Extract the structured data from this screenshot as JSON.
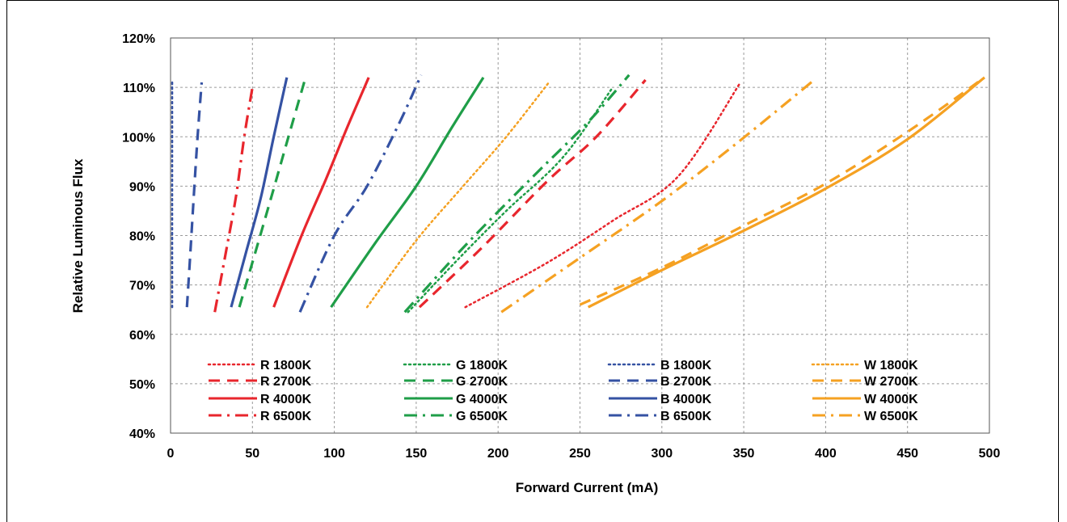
{
  "colors": {
    "R": "#e8262d",
    "G": "#1f9e48",
    "B": "#3552a3",
    "W": "#f5a122",
    "grid": "#9a9a9a"
  },
  "chart_data": {
    "type": "line",
    "title": "",
    "xlabel": "Forward Current (mA)",
    "ylabel": "Relative Luminous Flux",
    "xlim": [
      0,
      500
    ],
    "ylim": [
      0.4,
      1.2
    ],
    "x_ticks": [
      0,
      50,
      100,
      150,
      200,
      250,
      300,
      350,
      400,
      450,
      500
    ],
    "y_ticks": [
      "40%",
      "50%",
      "60%",
      "70%",
      "80%",
      "90%",
      "100%",
      "110%",
      "120%"
    ],
    "grid": true,
    "legend_position": "bottom-inside",
    "series": [
      {
        "name": "R 1800K",
        "color_key": "R",
        "style": "dotted",
        "x": [
          180,
          230,
          270,
          310,
          348
        ],
        "y": [
          0.655,
          0.745,
          0.83,
          0.92,
          1.11
        ]
      },
      {
        "name": "G 1800K",
        "color_key": "G",
        "style": "dotted",
        "x": [
          145,
          175,
          205,
          240,
          270
        ],
        "y": [
          0.645,
          0.75,
          0.85,
          0.96,
          1.1
        ]
      },
      {
        "name": "B 1800K",
        "color_key": "B",
        "style": "dotted",
        "x": [
          1,
          1,
          1
        ],
        "y": [
          0.655,
          0.88,
          1.115
        ]
      },
      {
        "name": "W 1800K",
        "color_key": "W",
        "style": "dotted",
        "x": [
          120,
          150,
          180,
          205,
          231
        ],
        "y": [
          0.655,
          0.79,
          0.905,
          1.0,
          1.11
        ]
      },
      {
        "name": "R 2700K",
        "color_key": "R",
        "style": "dashed",
        "x": [
          152,
          190,
          230,
          260,
          290
        ],
        "y": [
          0.655,
          0.775,
          0.91,
          1.0,
          1.115
        ]
      },
      {
        "name": "G 2700K",
        "color_key": "G",
        "style": "dashed",
        "x": [
          42,
          53,
          63,
          72,
          82
        ],
        "y": [
          0.655,
          0.78,
          0.895,
          1.0,
          1.115
        ]
      },
      {
        "name": "B 2700K",
        "color_key": "B",
        "style": "dashed",
        "x": [
          10,
          12,
          14,
          16.5,
          19
        ],
        "y": [
          0.655,
          0.76,
          0.87,
          1.0,
          1.11
        ]
      },
      {
        "name": "W 2700K",
        "color_key": "W",
        "style": "dashed",
        "x": [
          250,
          300,
          350,
          400,
          450,
          497
        ],
        "y": [
          0.66,
          0.735,
          0.82,
          0.905,
          1.01,
          1.12
        ]
      },
      {
        "name": "R 4000K",
        "color_key": "R",
        "style": "solid",
        "x": [
          63,
          80,
          95,
          108,
          121
        ],
        "y": [
          0.655,
          0.8,
          0.915,
          1.02,
          1.12
        ]
      },
      {
        "name": "G 4000K",
        "color_key": "G",
        "style": "solid",
        "x": [
          98,
          125,
          150,
          172,
          191
        ],
        "y": [
          0.655,
          0.785,
          0.9,
          1.02,
          1.12
        ]
      },
      {
        "name": "B 4000K",
        "color_key": "B",
        "style": "solid",
        "x": [
          37,
          46,
          55,
          63,
          71
        ],
        "y": [
          0.655,
          0.765,
          0.875,
          1.0,
          1.12
        ]
      },
      {
        "name": "W 4000K",
        "color_key": "W",
        "style": "solid",
        "x": [
          255,
          300,
          350,
          400,
          450,
          497
        ],
        "y": [
          0.655,
          0.73,
          0.81,
          0.895,
          0.995,
          1.12
        ]
      },
      {
        "name": "R 6500K",
        "color_key": "R",
        "style": "dashdot",
        "x": [
          27,
          34,
          40,
          45,
          50
        ],
        "y": [
          0.645,
          0.77,
          0.88,
          1.0,
          1.1
        ]
      },
      {
        "name": "G 6500K",
        "color_key": "G",
        "style": "dashdot",
        "x": [
          143,
          180,
          220,
          255,
          280
        ],
        "y": [
          0.645,
          0.78,
          0.915,
          1.03,
          1.125
        ]
      },
      {
        "name": "B 6500K",
        "color_key": "B",
        "style": "dashdot",
        "x": [
          79,
          100,
          120,
          140,
          153
        ],
        "y": [
          0.645,
          0.8,
          0.9,
          1.03,
          1.125
        ]
      },
      {
        "name": "W 6500K",
        "color_key": "W",
        "style": "dashdot",
        "x": [
          202,
          250,
          300,
          345,
          393
        ],
        "y": [
          0.645,
          0.755,
          0.87,
          0.985,
          1.115
        ]
      }
    ]
  }
}
